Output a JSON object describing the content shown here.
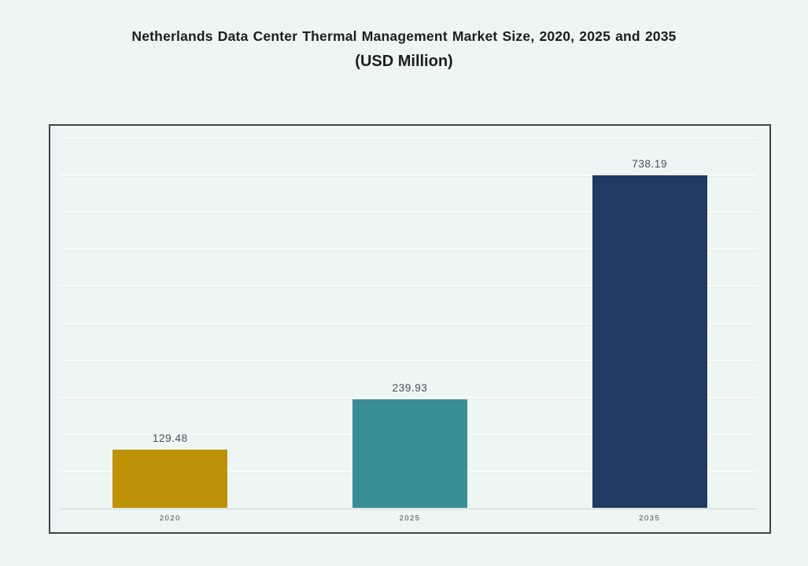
{
  "page": {
    "background": "#eef6f4"
  },
  "chart_data": {
    "type": "bar",
    "title": "Netherlands Data Center Thermal Management Market Size, 2020, 2025 and 2035",
    "subtitle": "(USD Million)",
    "categories": [
      "2020",
      "2025",
      "2035"
    ],
    "values": [
      129.48,
      239.93,
      738.19
    ],
    "colors": [
      "#bd9206",
      "#3a8f97",
      "#213a63"
    ],
    "xlabel": "",
    "ylabel": "",
    "ylim": [
      0,
      820
    ],
    "gridline_count": 11,
    "grid": true,
    "legend": "none",
    "value_labels": "above-bars"
  }
}
